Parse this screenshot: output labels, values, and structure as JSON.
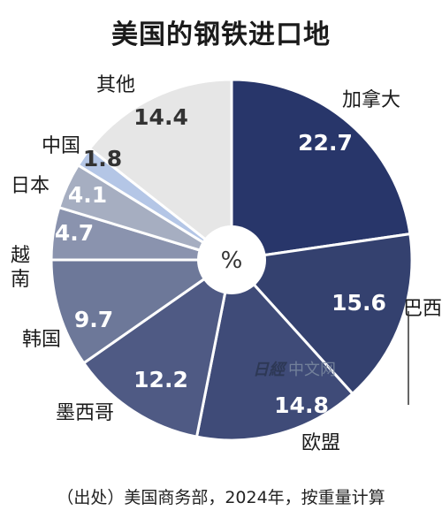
{
  "title": "美国的钢铁进口地",
  "source": "（出处）美国商务部，2024年，按重量计算",
  "unit": "%",
  "watermark": {
    "logo": "日經",
    "text": "中文网"
  },
  "chart_data": {
    "type": "pie",
    "title": "美国的钢铁进口地",
    "unit": "%",
    "categories": [
      "加拿大",
      "巴西",
      "欧盟",
      "墨西哥",
      "韩国",
      "越南",
      "日本",
      "中国",
      "其他"
    ],
    "values": [
      22.7,
      15.6,
      14.8,
      12.2,
      9.7,
      4.7,
      4.1,
      1.8,
      14.4
    ],
    "value_labels": [
      "22.7",
      "15.6",
      "14.8",
      "12.2",
      "9.7",
      "4.7",
      "4.1",
      "1.8",
      "14.4"
    ],
    "colors": [
      "#28366a",
      "#34416f",
      "#3f4b78",
      "#4f5a84",
      "#6d7899",
      "#8a93ae",
      "#a6aec1",
      "#b4c6e6",
      "#e6e6e6"
    ],
    "value_text_colors": [
      "#ffffff",
      "#ffffff",
      "#ffffff",
      "#ffffff",
      "#ffffff",
      "#ffffff",
      "#ffffff",
      "#333333",
      "#333333"
    ],
    "start_angle_deg": 0,
    "donut": true
  }
}
